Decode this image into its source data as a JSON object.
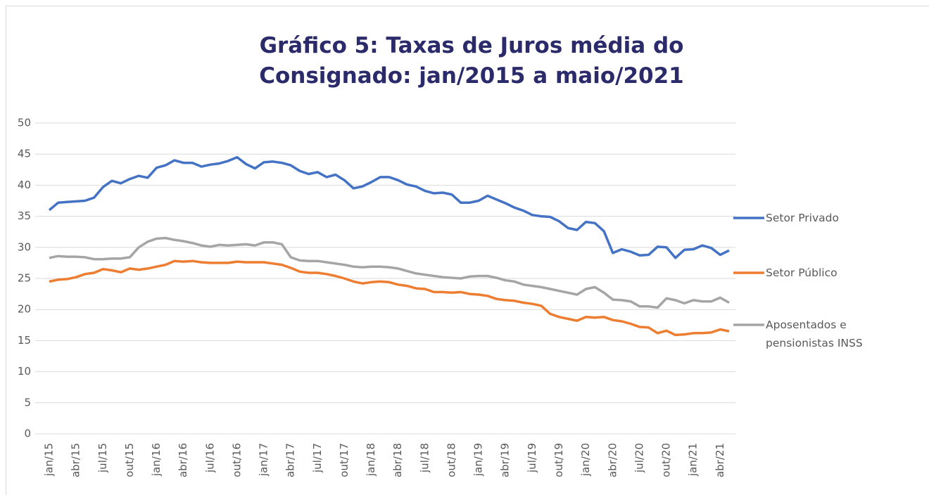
{
  "chart_data": {
    "type": "line",
    "title": "Gráfico 5: Taxas de Juros média do Consignado: jan/2015 a maio/2021",
    "categories": [
      "jan/15",
      null,
      null,
      "abr/15",
      null,
      null,
      "jul/15",
      null,
      null,
      "out/15",
      null,
      null,
      "jan/16",
      null,
      null,
      "abr/16",
      null,
      null,
      "jul/16",
      null,
      null,
      "out/16",
      null,
      null,
      "jan/17",
      null,
      null,
      "abr/17",
      null,
      null,
      "jul/17",
      null,
      null,
      "out/17",
      null,
      null,
      "jan/18",
      null,
      null,
      "abr/18",
      null,
      null,
      "jul/18",
      null,
      null,
      "out/18",
      null,
      null,
      "jan/19",
      null,
      null,
      "abr/19",
      null,
      null,
      "jul/19",
      null,
      null,
      "out/19",
      null,
      null,
      "jan/20",
      null,
      null,
      "abr/20",
      null,
      null,
      "jul/20",
      null,
      null,
      "out/20",
      null,
      null,
      "jan/21",
      null,
      null,
      "abr/21",
      null
    ],
    "series": [
      {
        "name": "Setor Privado",
        "color": "#4472c4",
        "values": [
          36.0,
          37.2,
          37.3,
          37.4,
          37.5,
          38.0,
          39.7,
          40.7,
          40.3,
          41.0,
          41.5,
          41.2,
          42.8,
          43.2,
          44.0,
          43.6,
          43.6,
          43.0,
          43.3,
          43.5,
          43.9,
          44.5,
          43.4,
          42.7,
          43.7,
          43.8,
          43.6,
          43.2,
          42.3,
          41.8,
          42.1,
          41.3,
          41.7,
          40.8,
          39.5,
          39.8,
          40.5,
          41.3,
          41.3,
          40.8,
          40.1,
          39.8,
          39.1,
          38.7,
          38.8,
          38.5,
          37.2,
          37.2,
          37.5,
          38.3,
          37.7,
          37.1,
          36.4,
          35.9,
          35.2,
          35.0,
          34.9,
          34.2,
          33.1,
          32.8,
          34.1,
          33.9,
          32.6,
          29.1,
          29.7,
          29.3,
          28.7,
          28.8,
          30.1,
          30.0,
          28.3,
          29.6,
          29.7,
          30.3,
          29.9,
          28.8,
          29.5
        ]
      },
      {
        "name": "Setor Público",
        "color": "#ed7d31",
        "values": [
          24.5,
          24.8,
          24.9,
          25.2,
          25.7,
          25.9,
          26.5,
          26.3,
          26.0,
          26.6,
          26.4,
          26.6,
          26.9,
          27.2,
          27.8,
          27.7,
          27.8,
          27.6,
          27.5,
          27.5,
          27.5,
          27.7,
          27.6,
          27.6,
          27.6,
          27.4,
          27.2,
          26.7,
          26.1,
          25.9,
          25.9,
          25.7,
          25.4,
          25.0,
          24.5,
          24.2,
          24.4,
          24.5,
          24.4,
          24.0,
          23.8,
          23.4,
          23.3,
          22.8,
          22.8,
          22.7,
          22.8,
          22.5,
          22.4,
          22.2,
          21.7,
          21.5,
          21.4,
          21.1,
          20.9,
          20.6,
          19.3,
          18.8,
          18.5,
          18.2,
          18.8,
          18.7,
          18.8,
          18.3,
          18.1,
          17.7,
          17.2,
          17.1,
          16.2,
          16.6,
          15.9,
          16.0,
          16.2,
          16.2,
          16.3,
          16.8,
          16.5
        ]
      },
      {
        "name": "Aposentados e pensionistas INSS",
        "color": "#a5a5a5",
        "values": [
          28.3,
          28.6,
          28.5,
          28.5,
          28.4,
          28.1,
          28.1,
          28.2,
          28.2,
          28.4,
          30.0,
          30.9,
          31.4,
          31.5,
          31.2,
          31.0,
          30.7,
          30.3,
          30.1,
          30.4,
          30.3,
          30.4,
          30.5,
          30.3,
          30.8,
          30.8,
          30.5,
          28.4,
          27.9,
          27.8,
          27.8,
          27.6,
          27.4,
          27.2,
          26.9,
          26.8,
          26.9,
          26.9,
          26.8,
          26.6,
          26.2,
          25.8,
          25.6,
          25.4,
          25.2,
          25.1,
          25.0,
          25.3,
          25.4,
          25.4,
          25.1,
          24.7,
          24.5,
          24.0,
          23.8,
          23.6,
          23.3,
          23.0,
          22.7,
          22.4,
          23.3,
          23.6,
          22.7,
          21.6,
          21.5,
          21.3,
          20.5,
          20.5,
          20.3,
          21.8,
          21.5,
          21.0,
          21.5,
          21.3,
          21.3,
          21.9,
          21.1
        ]
      }
    ],
    "ylim": [
      0,
      50
    ],
    "yticks": [
      0,
      5,
      10,
      15,
      20,
      25,
      30,
      35,
      40,
      45,
      50
    ],
    "grid": true,
    "legend": "right"
  }
}
